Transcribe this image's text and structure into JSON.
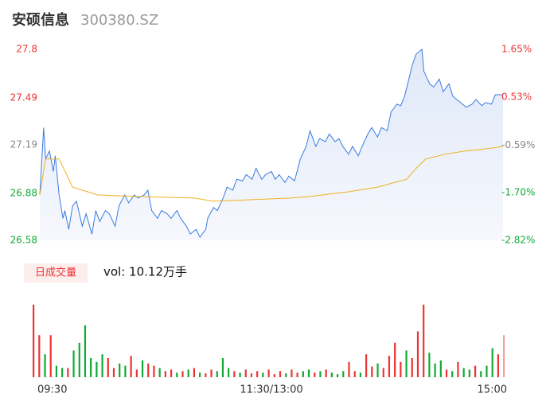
{
  "chart_data": {
    "type": "intraday",
    "title": "安硕信息",
    "subtitle": "300380.SZ",
    "ylim": [
      26.58,
      27.8
    ],
    "yticks": [
      27.8,
      27.49,
      27.19,
      26.88,
      26.58
    ],
    "ytick_colors": [
      "#e33",
      "#e33",
      "#888",
      "#1a3",
      "#1a3"
    ],
    "y2lim": [
      -2.82,
      1.65
    ],
    "y2ticks": [
      {
        "value": 1.65,
        "label": "1.65%"
      },
      {
        "value": 0.53,
        "label": "0.53%"
      },
      {
        "value": -0.59,
        "label": "-0.59%"
      },
      {
        "value": -1.7,
        "label": "-1.70%"
      },
      {
        "value": -2.82,
        "label": "-2.82%"
      }
    ],
    "xlim": [
      0,
      240
    ],
    "xticks": [
      {
        "value": 0,
        "label": "09:30"
      },
      {
        "value": 120,
        "label": "11:30/13:00"
      },
      {
        "value": 240,
        "label": "15:00"
      }
    ],
    "series": [
      {
        "color": "#3a7be0",
        "x": [
          0,
          2,
          3,
          5,
          7,
          8,
          10,
          12,
          13,
          15,
          17,
          19,
          22,
          24,
          27,
          29,
          31,
          34,
          36,
          39,
          41,
          44,
          46,
          49,
          51,
          54,
          56,
          58,
          61,
          63,
          66,
          68,
          71,
          73,
          76,
          78,
          81,
          83,
          86,
          87,
          90,
          92,
          95,
          97,
          100,
          102,
          105,
          107,
          110,
          112,
          115,
          117,
          120,
          122,
          124,
          127,
          129,
          132,
          135,
          138,
          140,
          143,
          145,
          148,
          150,
          153,
          155,
          157,
          160,
          162,
          165,
          167,
          170,
          172,
          175,
          177,
          180,
          182,
          185,
          187,
          189,
          191,
          193,
          195,
          198,
          199,
          202,
          204,
          207,
          209,
          212,
          214,
          216,
          219,
          221,
          224,
          226,
          229,
          231,
          234,
          236,
          240
        ],
        "values": [
          26.87,
          27.3,
          27.1,
          27.15,
          27.02,
          27.12,
          26.87,
          26.72,
          26.77,
          26.65,
          26.8,
          26.83,
          26.67,
          26.75,
          26.62,
          26.77,
          26.7,
          26.77,
          26.75,
          26.67,
          26.8,
          26.87,
          26.82,
          26.87,
          26.85,
          26.87,
          26.9,
          26.77,
          26.72,
          26.77,
          26.75,
          26.72,
          26.77,
          26.72,
          26.67,
          26.62,
          26.65,
          26.6,
          26.65,
          26.72,
          26.79,
          26.77,
          26.85,
          26.92,
          26.9,
          26.97,
          26.96,
          27.0,
          26.97,
          27.04,
          26.97,
          27.0,
          27.02,
          26.97,
          27.0,
          26.95,
          26.99,
          26.96,
          27.1,
          27.18,
          27.28,
          27.18,
          27.23,
          27.21,
          27.26,
          27.21,
          27.23,
          27.18,
          27.13,
          27.18,
          27.12,
          27.18,
          27.26,
          27.3,
          27.24,
          27.3,
          27.28,
          27.4,
          27.45,
          27.44,
          27.5,
          27.6,
          27.7,
          27.77,
          27.8,
          27.66,
          27.58,
          27.56,
          27.61,
          27.53,
          27.58,
          27.5,
          27.48,
          27.45,
          27.43,
          27.45,
          27.48,
          27.44,
          27.46,
          27.45,
          27.51,
          27.51
        ]
      },
      {
        "color": "#f0b020",
        "x": [
          0,
          3,
          10,
          17,
          30,
          50,
          80,
          90,
          110,
          130,
          140,
          160,
          175,
          190,
          195,
          200,
          210,
          220,
          235,
          240
        ],
        "values": [
          26.87,
          27.1,
          27.1,
          26.92,
          26.87,
          26.86,
          26.85,
          26.83,
          26.84,
          26.85,
          26.86,
          26.89,
          26.92,
          26.97,
          27.04,
          27.1,
          27.13,
          27.15,
          27.17,
          27.18
        ]
      }
    ],
    "volume": {
      "legend": "日成交量",
      "label": "vol: 10.12万手",
      "ylim": [
        0,
        100
      ],
      "values": [
        95,
        55,
        30,
        55,
        15,
        12,
        12,
        35,
        45,
        68,
        25,
        20,
        30,
        25,
        12,
        18,
        15,
        28,
        10,
        22,
        18,
        15,
        12,
        8,
        10,
        6,
        8,
        10,
        12,
        6,
        5,
        10,
        8,
        25,
        12,
        8,
        6,
        10,
        5,
        8,
        6,
        10,
        4,
        8,
        5,
        10,
        6,
        8,
        10,
        6,
        8,
        10,
        6,
        4,
        8,
        20,
        8,
        6,
        30,
        14,
        18,
        12,
        28,
        45,
        20,
        35,
        25,
        60,
        95,
        32,
        18,
        22,
        10,
        8,
        20,
        12,
        10,
        15,
        8,
        15,
        38,
        30,
        55
      ],
      "colors": [
        "#e33",
        "#e33",
        "#1a3",
        "#e33",
        "#1a3",
        "#1a3",
        "#e33",
        "#1a3",
        "#1a3",
        "#1a3",
        "#1a3",
        "#1a3",
        "#1a3",
        "#e33",
        "#e33",
        "#1a3",
        "#1a3",
        "#e33",
        "#e33",
        "#1a3",
        "#e33",
        "#e33",
        "#1a3",
        "#e33",
        "#e33",
        "#1a3",
        "#e33",
        "#1a3",
        "#e33",
        "#1a3",
        "#e33",
        "#e33",
        "#1a3",
        "#1a3",
        "#1a3",
        "#e33",
        "#1a3",
        "#e33",
        "#e33",
        "#e33",
        "#1a3",
        "#e33",
        "#e33",
        "#e33",
        "#1a3",
        "#e33",
        "#e33",
        "#1a3",
        "#1a3",
        "#e33",
        "#1a3",
        "#e33",
        "#1a3",
        "#1a3",
        "#1a3",
        "#e33",
        "#e33",
        "#1a3",
        "#e33",
        "#e33",
        "#1a3",
        "#e33",
        "#e33",
        "#e33",
        "#e33",
        "#1a3",
        "#e33",
        "#e33",
        "#e33",
        "#1a3",
        "#1a3",
        "#1a3",
        "#e33",
        "#1a3",
        "#e33",
        "#1a3",
        "#1a3",
        "#e33",
        "#1a3",
        "#1a3",
        "#1a3",
        "#e33",
        "#f4a0a0"
      ]
    }
  }
}
